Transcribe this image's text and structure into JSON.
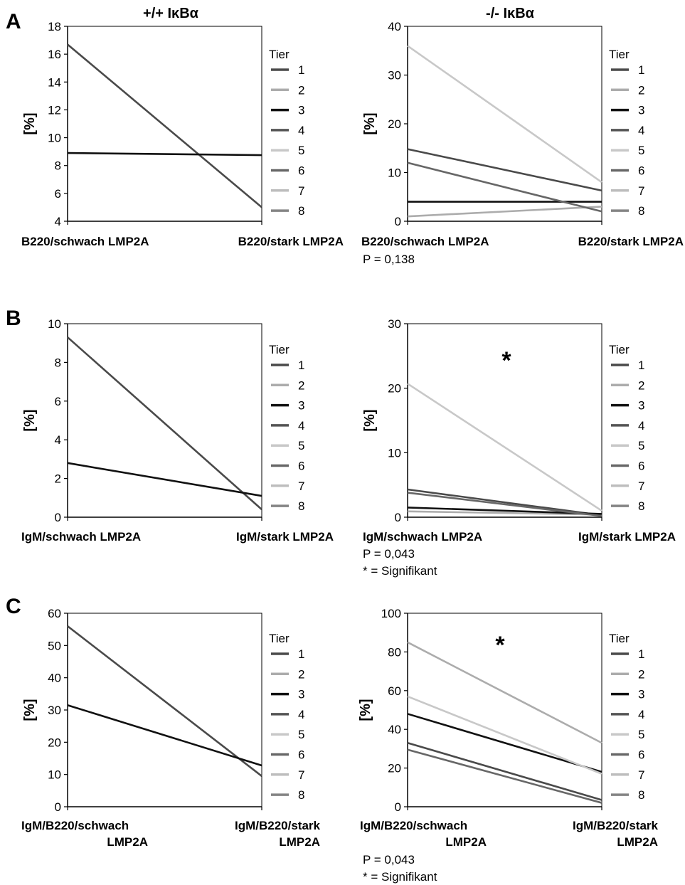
{
  "titles": {
    "left": "+/+ IκBα",
    "right": "-/- IκBα"
  },
  "legend": {
    "title": "Tier",
    "entries": [
      "1",
      "2",
      "3",
      "4",
      "5",
      "6",
      "7",
      "8"
    ],
    "colors": [
      "#4a4a4a",
      "#acacac",
      "#111111",
      "#555555",
      "#c8c8c8",
      "#676767",
      "#bdbdbd",
      "#858585"
    ]
  },
  "chart_data": [
    {
      "id": "A-left",
      "type": "line",
      "panel": "A",
      "ylabel": "[%]",
      "ylim": [
        4,
        18
      ],
      "yticks": [
        4,
        6,
        8,
        10,
        12,
        14,
        16,
        18
      ],
      "categories": [
        "B220/schwach LMP2A",
        "B220/stark LMP2A"
      ],
      "series": [
        {
          "name": "1",
          "values": [
            16.7,
            5.0
          ]
        },
        {
          "name": "3",
          "values": [
            8.9,
            8.75
          ]
        }
      ],
      "notes": []
    },
    {
      "id": "A-right",
      "type": "line",
      "panel": "A",
      "ylabel": "[%]",
      "ylim": [
        0,
        40
      ],
      "yticks": [
        0,
        10,
        20,
        30,
        40
      ],
      "categories": [
        "B220/schwach LMP2A",
        "B220/stark LMP2A"
      ],
      "series": [
        {
          "name": "1",
          "values": [
            14.8,
            6.3
          ]
        },
        {
          "name": "2",
          "values": [
            1.0,
            3.0
          ]
        },
        {
          "name": "3",
          "values": [
            4.0,
            4.0
          ]
        },
        {
          "name": "5",
          "values": [
            36.0,
            8.0
          ]
        },
        {
          "name": "6",
          "values": [
            12.0,
            2.0
          ]
        }
      ],
      "notes": [
        "P = 0,138"
      ]
    },
    {
      "id": "B-left",
      "type": "line",
      "panel": "B",
      "ylabel": "[%]",
      "ylim": [
        0,
        10
      ],
      "yticks": [
        0,
        2,
        4,
        6,
        8,
        10
      ],
      "categories": [
        "IgM/schwach LMP2A",
        "IgM/stark LMP2A"
      ],
      "series": [
        {
          "name": "1",
          "values": [
            9.3,
            0.4
          ]
        },
        {
          "name": "3",
          "values": [
            2.8,
            1.1
          ]
        }
      ],
      "notes": []
    },
    {
      "id": "B-right",
      "type": "line",
      "panel": "B",
      "ylabel": "[%]",
      "ylim": [
        0,
        30
      ],
      "yticks": [
        0,
        10,
        20,
        30
      ],
      "categories": [
        "IgM/schwach LMP2A",
        "IgM/stark LMP2A"
      ],
      "series": [
        {
          "name": "1",
          "values": [
            4.3,
            0.3
          ]
        },
        {
          "name": "2",
          "values": [
            0.9,
            0.4
          ]
        },
        {
          "name": "3",
          "values": [
            1.5,
            0.5
          ]
        },
        {
          "name": "5",
          "values": [
            20.7,
            1.0
          ]
        },
        {
          "name": "6",
          "values": [
            3.8,
            0.2
          ]
        }
      ],
      "annotation": "*",
      "notes": [
        "P = 0,043",
        "* = Signifikant"
      ]
    },
    {
      "id": "C-left",
      "type": "line",
      "panel": "C",
      "ylabel": "[%]",
      "ylim": [
        0,
        60
      ],
      "yticks": [
        0,
        10,
        20,
        30,
        40,
        50,
        60
      ],
      "categories": [
        "IgM/B220/schwach LMP2A",
        "IgM/B220/stark LMP2A"
      ],
      "series": [
        {
          "name": "1",
          "values": [
            56.0,
            9.5
          ]
        },
        {
          "name": "3",
          "values": [
            31.5,
            12.8
          ]
        }
      ],
      "notes": []
    },
    {
      "id": "C-right",
      "type": "line",
      "panel": "C",
      "ylabel": "[%]",
      "ylim": [
        0,
        100
      ],
      "yticks": [
        0,
        20,
        40,
        60,
        80,
        100
      ],
      "categories": [
        "IgM/B220/schwach LMP2A",
        "IgM/B220/stark LMP2A"
      ],
      "series": [
        {
          "name": "1",
          "values": [
            33.0,
            3.5
          ]
        },
        {
          "name": "2",
          "values": [
            85.0,
            33.0
          ]
        },
        {
          "name": "3",
          "values": [
            48.0,
            18.0
          ]
        },
        {
          "name": "5",
          "values": [
            57.0,
            17.0
          ]
        },
        {
          "name": "6",
          "values": [
            29.5,
            2.0
          ]
        }
      ],
      "annotation": "*",
      "notes": [
        "P = 0,043",
        "* = Signifikant"
      ]
    }
  ]
}
